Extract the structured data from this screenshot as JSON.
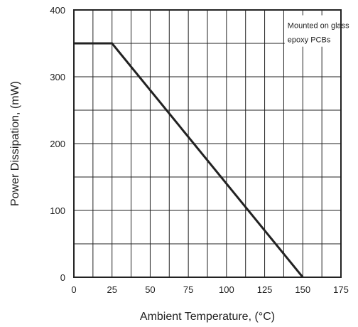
{
  "chart_data": {
    "type": "line",
    "xlabel": "Ambient Temperature, (°C)",
    "ylabel": "Power Dissipation, (mW)",
    "xlim": [
      0,
      175
    ],
    "ylim": [
      0,
      400
    ],
    "xticks": [
      0,
      25,
      50,
      75,
      100,
      125,
      150,
      175
    ],
    "yticks": [
      0,
      100,
      200,
      300,
      400
    ],
    "grid": true,
    "series": [
      {
        "x": [
          0,
          25,
          150
        ],
        "y": [
          350,
          350,
          0
        ]
      }
    ],
    "annotation": [
      "Mounted on glass",
      "epoxy PCBs"
    ]
  }
}
